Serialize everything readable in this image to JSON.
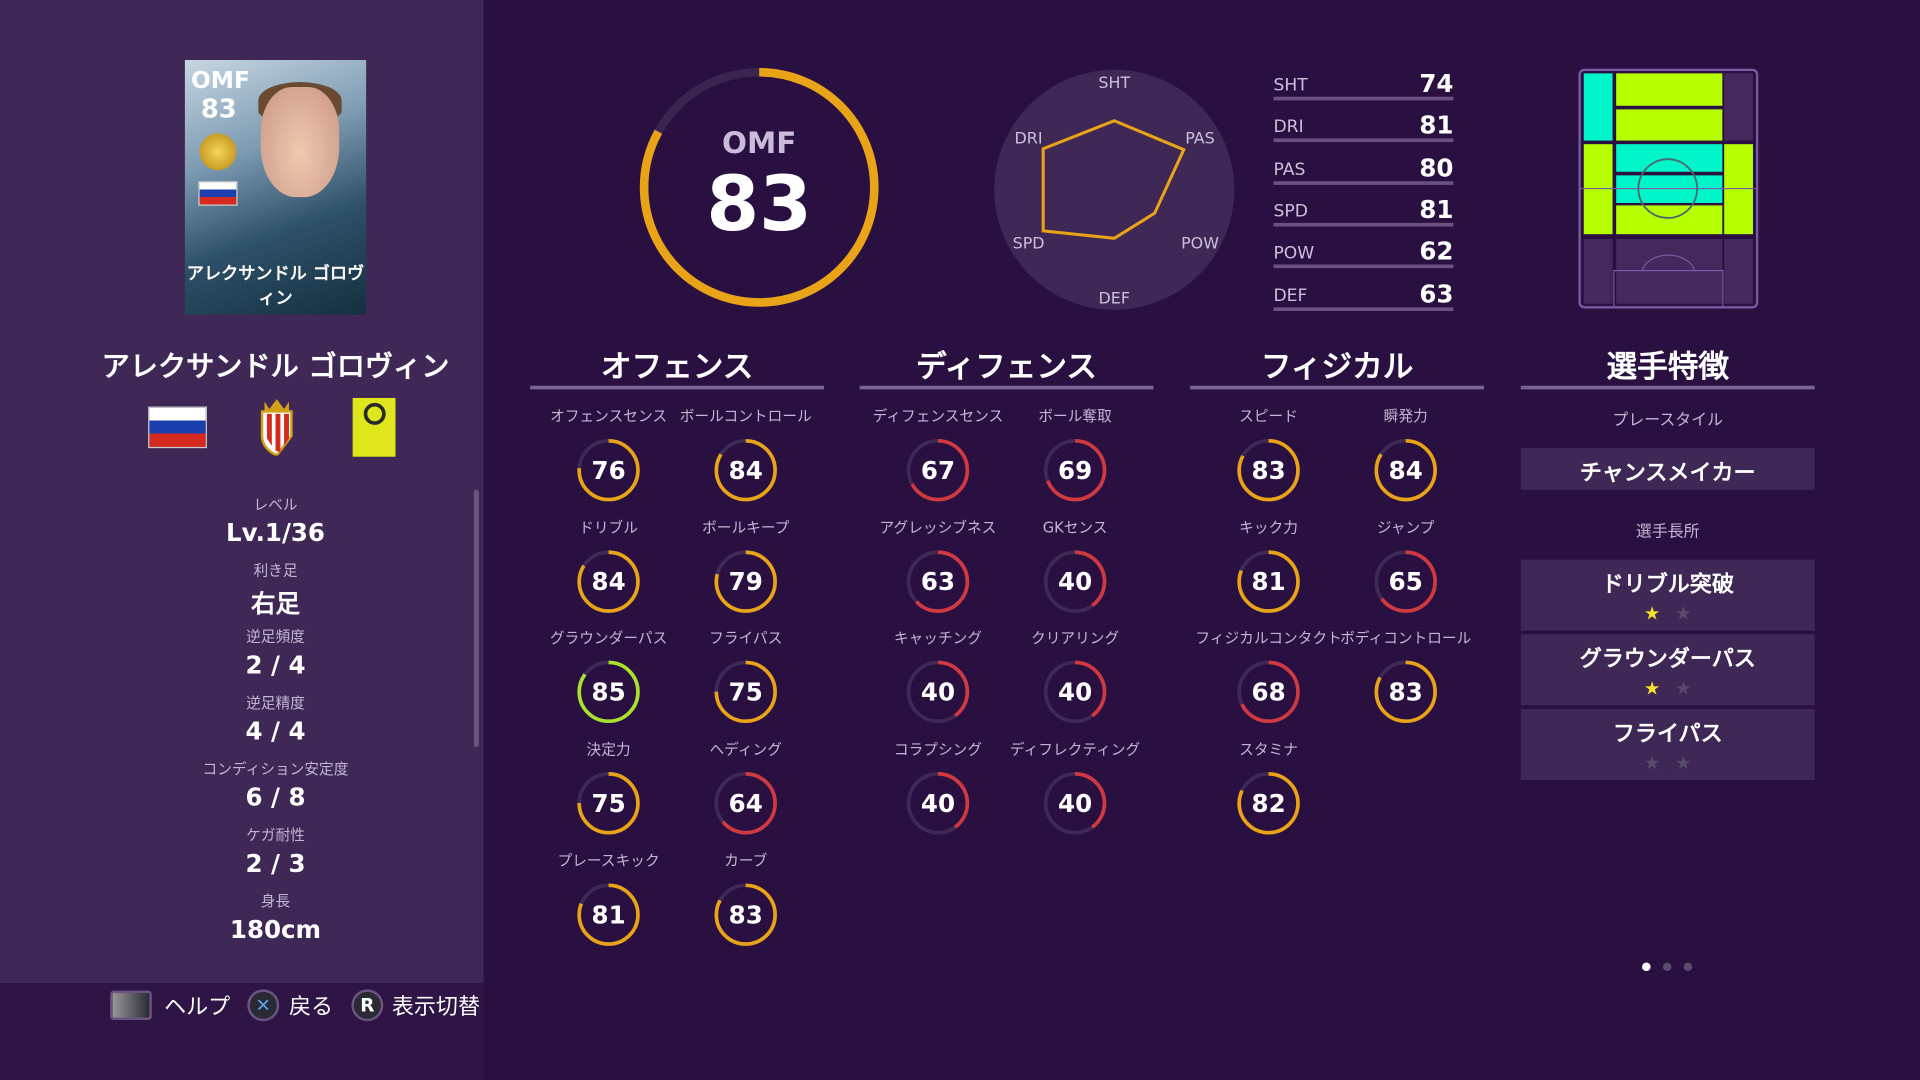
{
  "player": {
    "name": "アレクサンドル ゴロヴィン",
    "card_name": "アレクサンドル ゴロヴィン",
    "position": "OMF",
    "overall": 83,
    "nationality_flag": "russia-flag",
    "club_crest": "monaco-crest",
    "league_logo": "ligue1-logo"
  },
  "info": [
    {
      "label": "レベル",
      "value": "Lv.1/36"
    },
    {
      "label": "利き足",
      "value": "右足"
    },
    {
      "label": "逆足頻度",
      "value": "2 / 4"
    },
    {
      "label": "逆足精度",
      "value": "4 / 4"
    },
    {
      "label": "コンディション安定度",
      "value": "6 / 8"
    },
    {
      "label": "ケガ耐性",
      "value": "2 / 3"
    },
    {
      "label": "身長",
      "value": "180cm"
    }
  ],
  "footer": [
    {
      "icon": "touchpad-icon",
      "label": "ヘルプ"
    },
    {
      "icon": "cross-button-icon",
      "glyph": "✕",
      "label": "戻る"
    },
    {
      "icon": "r-button-icon",
      "glyph": "R",
      "label": "表示切替"
    }
  ],
  "radar": {
    "axes": [
      "SHT",
      "PAS",
      "POW",
      "DEF",
      "SPD",
      "DRI"
    ],
    "values": [
      74,
      80,
      62,
      63,
      81,
      81
    ]
  },
  "summary_stats": [
    {
      "label": "SHT",
      "value": 74
    },
    {
      "label": "DRI",
      "value": 81
    },
    {
      "label": "PAS",
      "value": 80
    },
    {
      "label": "SPD",
      "value": 81
    },
    {
      "label": "POW",
      "value": 62
    },
    {
      "label": "DEF",
      "value": 63
    }
  ],
  "sections": [
    {
      "title": "オフェンス",
      "stats": [
        {
          "label": "オフェンスセンス",
          "value": 76
        },
        {
          "label": "ボールコントロール",
          "value": 84
        },
        {
          "label": "ドリブル",
          "value": 84
        },
        {
          "label": "ボールキープ",
          "value": 79
        },
        {
          "label": "グラウンダーパス",
          "value": 85
        },
        {
          "label": "フライパス",
          "value": 75
        },
        {
          "label": "決定力",
          "value": 75
        },
        {
          "label": "ヘディング",
          "value": 64
        },
        {
          "label": "プレースキック",
          "value": 81
        },
        {
          "label": "カーブ",
          "value": 83
        }
      ]
    },
    {
      "title": "ディフェンス",
      "stats": [
        {
          "label": "ディフェンスセンス",
          "value": 67
        },
        {
          "label": "ボール奪取",
          "value": 69
        },
        {
          "label": "アグレッシブネス",
          "value": 63
        },
        {
          "label": "GKセンス",
          "value": 40
        },
        {
          "label": "キャッチング",
          "value": 40
        },
        {
          "label": "クリアリング",
          "value": 40
        },
        {
          "label": "コラプシング",
          "value": 40
        },
        {
          "label": "ディフレクティング",
          "value": 40
        }
      ]
    },
    {
      "title": "フィジカル",
      "stats": [
        {
          "label": "スピード",
          "value": 83
        },
        {
          "label": "瞬発力",
          "value": 84
        },
        {
          "label": "キック力",
          "value": 81
        },
        {
          "label": "ジャンプ",
          "value": 65
        },
        {
          "label": "フィジカルコンタクト",
          "value": 68
        },
        {
          "label": "ボディコントロール",
          "value": 83
        },
        {
          "label": "スタミナ",
          "value": 82
        }
      ]
    }
  ],
  "traits": {
    "title": "選手特徴",
    "playstyle_label": "プレースタイル",
    "playstyle": "チャンスメイカー",
    "strengths_label": "選手長所",
    "strengths": [
      {
        "name": "ドリブル突破",
        "stars": 1,
        "max_stars": 2
      },
      {
        "name": "グラウンダーパス",
        "stars": 1,
        "max_stars": 2
      },
      {
        "name": "フライパス",
        "stars": 0,
        "max_stars": 2
      }
    ]
  },
  "pagination": {
    "pages": 3,
    "current": 1
  },
  "colors": {
    "background": "#2a1040",
    "panel": "#3f2856",
    "gold": "#e8a317",
    "green": "#a6e22e",
    "red": "#d0393f",
    "zone_primary": "#00f5c8",
    "zone_secondary": "#b5ff00"
  }
}
